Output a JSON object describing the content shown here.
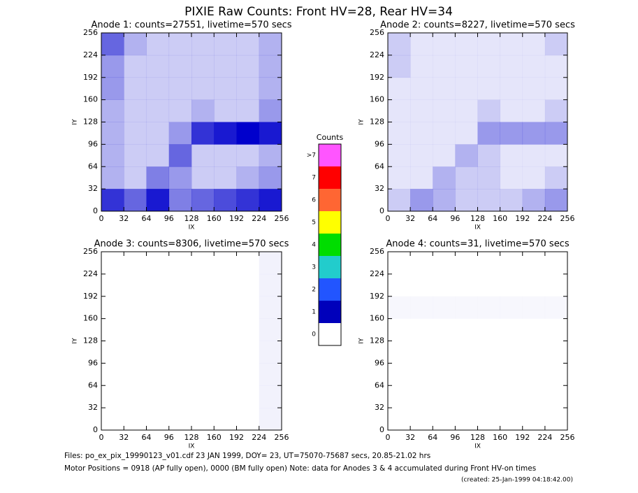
{
  "title": "PIXIE Raw Counts:  Front HV=28, Rear HV=34",
  "footer": [
    "Files: po_ex_pix_19990123_v01.cdf   23 JAN 1999, DOY= 23, UT=75070-75687 secs, 20.85-21.02 hrs",
    "Motor Positions = 0918 (AP fully open), 0000 (BM fully open)   Note: data for Anodes 3 & 4 accumulated during Front HV-on times",
    "(created: 25-Jan-1999 04:18:42.00)"
  ],
  "colorbar": {
    "title": "Counts",
    "labels": [
      ">7",
      "7",
      "6",
      "5",
      "4",
      "3",
      "2",
      "1",
      "0"
    ],
    "colors": [
      "#ff55ff",
      "#ff0000",
      "#ff6633",
      "#ffff00",
      "#00dd00",
      "#22cccc",
      "#2255ff",
      "#0000bb",
      "#ffffff"
    ]
  },
  "chart_data": [
    {
      "type": "heatmap",
      "title": "Anode 1: counts=27551, livetime=570 secs",
      "x_label": "IX",
      "y_label": "IY",
      "color": "#0000cc",
      "xlim": [
        0,
        256
      ],
      "ylim": [
        0,
        256
      ],
      "xticks": [
        0,
        32,
        64,
        96,
        128,
        160,
        192,
        224,
        256
      ],
      "yticks": [
        0,
        32,
        64,
        96,
        128,
        160,
        192,
        224,
        256
      ],
      "values": [
        [
          0.8,
          0.6,
          0.9,
          0.5,
          0.6,
          0.7,
          0.8,
          0.9
        ],
        [
          0.3,
          0.2,
          0.5,
          0.4,
          0.2,
          0.2,
          0.3,
          0.4
        ],
        [
          0.3,
          0.2,
          0.2,
          0.6,
          0.2,
          0.2,
          0.2,
          0.3
        ],
        [
          0.3,
          0.2,
          0.2,
          0.4,
          0.8,
          0.9,
          1.0,
          0.9
        ],
        [
          0.3,
          0.2,
          0.2,
          0.2,
          0.3,
          0.2,
          0.2,
          0.4
        ],
        [
          0.4,
          0.2,
          0.2,
          0.2,
          0.2,
          0.2,
          0.2,
          0.3
        ],
        [
          0.4,
          0.2,
          0.2,
          0.2,
          0.2,
          0.2,
          0.2,
          0.3
        ],
        [
          0.6,
          0.3,
          0.2,
          0.2,
          0.2,
          0.2,
          0.2,
          0.3
        ]
      ]
    },
    {
      "type": "heatmap",
      "title": "Anode 2: counts=8227, livetime=570 secs",
      "x_label": "IX",
      "y_label": "IY",
      "color": "#0000cc",
      "xlim": [
        0,
        256
      ],
      "ylim": [
        0,
        256
      ],
      "xticks": [
        0,
        32,
        64,
        96,
        128,
        160,
        192,
        224,
        256
      ],
      "yticks": [
        0,
        32,
        64,
        96,
        128,
        160,
        192,
        224,
        256
      ],
      "values": [
        [
          0.2,
          0.4,
          0.3,
          0.2,
          0.2,
          0.2,
          0.3,
          0.4
        ],
        [
          0.1,
          0.1,
          0.3,
          0.2,
          0.2,
          0.1,
          0.1,
          0.2
        ],
        [
          0.1,
          0.1,
          0.1,
          0.3,
          0.2,
          0.1,
          0.1,
          0.1
        ],
        [
          0.1,
          0.1,
          0.1,
          0.1,
          0.4,
          0.4,
          0.4,
          0.4
        ],
        [
          0.1,
          0.1,
          0.1,
          0.1,
          0.2,
          0.1,
          0.1,
          0.2
        ],
        [
          0.1,
          0.1,
          0.1,
          0.1,
          0.1,
          0.1,
          0.1,
          0.1
        ],
        [
          0.2,
          0.1,
          0.1,
          0.1,
          0.1,
          0.1,
          0.1,
          0.1
        ],
        [
          0.2,
          0.1,
          0.1,
          0.1,
          0.1,
          0.1,
          0.1,
          0.2
        ]
      ]
    },
    {
      "type": "heatmap",
      "title": "Anode 3: counts=8306, livetime=570 secs",
      "x_label": "IX",
      "y_label": "IY",
      "color": "#0000cc",
      "xlim": [
        0,
        256
      ],
      "ylim": [
        0,
        256
      ],
      "xticks": [
        0,
        32,
        64,
        96,
        128,
        160,
        192,
        224,
        256
      ],
      "yticks": [
        0,
        32,
        64,
        96,
        128,
        160,
        192,
        224,
        256
      ],
      "values": [
        [
          0,
          0,
          0,
          0,
          0,
          0,
          0,
          0.05
        ],
        [
          0,
          0,
          0,
          0,
          0,
          0,
          0,
          0.05
        ],
        [
          0,
          0,
          0,
          0,
          0,
          0,
          0,
          0.05
        ],
        [
          0,
          0,
          0,
          0,
          0,
          0,
          0,
          0.05
        ],
        [
          0,
          0,
          0,
          0,
          0,
          0,
          0,
          0.05
        ],
        [
          0,
          0,
          0,
          0,
          0,
          0,
          0,
          0.05
        ],
        [
          0,
          0,
          0,
          0,
          0,
          0,
          0,
          0.05
        ],
        [
          0,
          0,
          0,
          0,
          0,
          0,
          0,
          0.05
        ]
      ]
    },
    {
      "type": "heatmap",
      "title": "Anode 4: counts=31, livetime=570 secs",
      "x_label": "IX",
      "y_label": "IY",
      "color": "#0000cc",
      "xlim": [
        0,
        256
      ],
      "ylim": [
        0,
        256
      ],
      "xticks": [
        0,
        32,
        64,
        96,
        128,
        160,
        192,
        224,
        256
      ],
      "yticks": [
        0,
        32,
        64,
        96,
        128,
        160,
        192,
        224,
        256
      ],
      "values": [
        [
          0,
          0,
          0,
          0,
          0,
          0,
          0,
          0
        ],
        [
          0,
          0,
          0,
          0,
          0,
          0,
          0,
          0
        ],
        [
          0,
          0,
          0,
          0,
          0,
          0,
          0,
          0
        ],
        [
          0,
          0,
          0,
          0,
          0,
          0,
          0,
          0
        ],
        [
          0,
          0,
          0,
          0,
          0,
          0,
          0,
          0
        ],
        [
          0.03,
          0.03,
          0.03,
          0.03,
          0.03,
          0.03,
          0.03,
          0.03
        ],
        [
          0,
          0,
          0,
          0,
          0,
          0,
          0,
          0
        ],
        [
          0,
          0,
          0,
          0,
          0,
          0,
          0,
          0
        ]
      ]
    }
  ]
}
